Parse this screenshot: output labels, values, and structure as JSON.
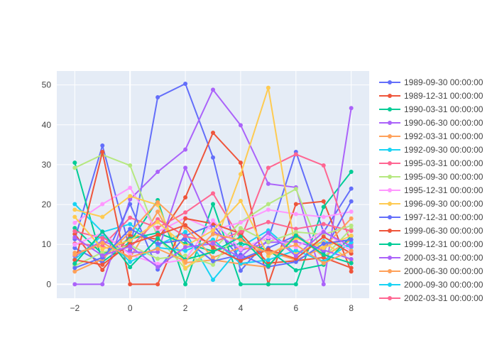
{
  "chart_data": {
    "type": "line",
    "title": "",
    "xlabel": "",
    "ylabel": "",
    "xlim": [
      -2.65,
      8.65
    ],
    "ylim": [
      -3.5,
      53.5
    ],
    "x_ticks": [
      -2,
      0,
      2,
      4,
      6,
      8
    ],
    "y_ticks": [
      0,
      10,
      20,
      30,
      40,
      50
    ],
    "grid": true,
    "legend_position": "right",
    "x": [
      -2,
      -1,
      0,
      1,
      2,
      3,
      4,
      5,
      6,
      7,
      8
    ],
    "series": [
      {
        "name": "1989-09-30 00:00:00",
        "color": "#636efa",
        "values": [
          11.3,
          34.8,
          8.6,
          46.9,
          50.3,
          31.8,
          3.4,
          11.3,
          33.2,
          13.1,
          24.0
        ]
      },
      {
        "name": "1989-12-31 00:00:00",
        "color": "#EF553B",
        "values": [
          12.6,
          3.6,
          12.2,
          11.3,
          21.8,
          38.0,
          30.5,
          0.0,
          20.1,
          20.8,
          3.2
        ]
      },
      {
        "name": "1990-03-31 00:00:00",
        "color": "#00cc96",
        "values": [
          30.5,
          5.6,
          10.6,
          21.1,
          0.0,
          20.1,
          0.0,
          0.0,
          0.0,
          19.4,
          28.2
        ]
      },
      {
        "name": "1990-06-30 00:00:00",
        "color": "#ab63fa",
        "values": [
          0.0,
          0.0,
          21.3,
          28.2,
          33.8,
          48.8,
          39.9,
          25.2,
          24.3,
          0.0,
          44.2
        ]
      },
      {
        "name": "1992-03-31 00:00:00",
        "color": "#FFA15A",
        "values": [
          7.9,
          9.6,
          6.6,
          18.2,
          5.4,
          6.1,
          5.1,
          4.3,
          12.7,
          6.9,
          11.2
        ]
      },
      {
        "name": "1992-09-30 00:00:00",
        "color": "#19d3f3",
        "values": [
          20.1,
          13.1,
          15.1,
          9.8,
          13.1,
          1.1,
          9.4,
          13.5,
          7.6,
          10.8,
          9.3
        ]
      },
      {
        "name": "1995-03-31 00:00:00",
        "color": "#FF6692",
        "values": [
          10.2,
          9.6,
          16.7,
          14.2,
          18.0,
          22.8,
          11.3,
          29.2,
          32.6,
          29.8,
          10.1
        ]
      },
      {
        "name": "1995-09-30 00:00:00",
        "color": "#B6E880",
        "values": [
          29.2,
          32.5,
          29.8,
          11.8,
          3.9,
          8.7,
          15.6,
          20.1,
          23.9,
          6.7,
          13.9
        ]
      },
      {
        "name": "1995-12-31 00:00:00",
        "color": "#FF97FF",
        "values": [
          15.4,
          20.1,
          24.2,
          13.1,
          16.7,
          13.6,
          15.5,
          18.7,
          17.6,
          16.9,
          18.2
        ]
      },
      {
        "name": "1996-09-30 00:00:00",
        "color": "#FECB52",
        "values": [
          18.7,
          16.9,
          22.1,
          19.9,
          4.1,
          8.8,
          27.6,
          49.3,
          7.9,
          10.6,
          5.9
        ]
      },
      {
        "name": "1997-12-31 00:00:00",
        "color": "#636efa",
        "values": [
          9.1,
          5.4,
          20.1,
          3.7,
          12.2,
          14.9,
          6.3,
          9.1,
          12.2,
          8.2,
          20.8
        ]
      },
      {
        "name": "1999-06-30 00:00:00",
        "color": "#EF553B",
        "values": [
          5.1,
          33.2,
          0.0,
          0.0,
          16.5,
          15.2,
          12.7,
          5.3,
          5.9,
          6.7,
          4.1
        ]
      },
      {
        "name": "1999-12-31 00:00:00",
        "color": "#00cc96",
        "values": [
          14.1,
          7.6,
          11.4,
          12.9,
          10.2,
          8.3,
          10.3,
          8.6,
          3.5,
          4.9,
          12.1
        ]
      },
      {
        "name": "2000-03-31 00:00:00",
        "color": "#ab63fa",
        "values": [
          7.1,
          10.9,
          8.0,
          8.1,
          29.2,
          13.4,
          8.5,
          10.5,
          10.7,
          8.6,
          6.3
        ]
      },
      {
        "name": "2000-06-30 00:00:00",
        "color": "#FFA15A",
        "values": [
          3.2,
          6.3,
          13.1,
          20.6,
          14.3,
          6.7,
          9.2,
          8.2,
          6.1,
          9.2,
          16.5
        ]
      },
      {
        "name": "2000-09-30 00:00:00",
        "color": "#19d3f3",
        "values": [
          6.2,
          12.3,
          5.6,
          9.2,
          8.4,
          11.2,
          5.2,
          6.1,
          8.5,
          5.7,
          10.5
        ]
      },
      {
        "name": "2002-03-31 00:00:00",
        "color": "#FF6692",
        "values": [
          13.3,
          11.6,
          9.2,
          16.3,
          12.0,
          10.5,
          13.2,
          15.6,
          13.9,
          15.1,
          13.4
        ]
      },
      {
        "name": "",
        "color": "#B6E880",
        "values": [
          4.6,
          8.0,
          9.8,
          6.4,
          7.2,
          4.9,
          14.1,
          10.6,
          13.1,
          12.5,
          14.7
        ]
      },
      {
        "name": "",
        "color": "#FF97FF",
        "values": [
          9.9,
          12.9,
          7.4,
          5.1,
          6.2,
          16.0,
          8.8,
          11.8,
          9.3,
          13.4,
          8.3
        ]
      },
      {
        "name": "",
        "color": "#FECB52",
        "values": [
          16.9,
          8.8,
          11.0,
          15.6,
          9.6,
          13.5,
          20.9,
          7.1,
          11.6,
          9.1,
          12.2
        ]
      },
      {
        "name": "",
        "color": "#636efa",
        "values": [
          4.1,
          6.7,
          13.9,
          10.2,
          11.2,
          5.8,
          7.4,
          4.4,
          5.6,
          10.2,
          11.2
        ]
      },
      {
        "name": "",
        "color": "#EF553B",
        "values": [
          6.1,
          4.9,
          10.1,
          12.4,
          14.8,
          9.2,
          5.9,
          8.7,
          6.4,
          11.9,
          7.7
        ]
      },
      {
        "name": "",
        "color": "#00cc96",
        "values": [
          5.2,
          13.2,
          4.3,
          11.5,
          6.2,
          8.1,
          11.9,
          4.6,
          12.2,
          7.4,
          5.3
        ]
      },
      {
        "name": "",
        "color": "#ab63fa",
        "values": [
          11.8,
          7.2,
          9.5,
          4.3,
          9.3,
          10.2,
          6.8,
          12.9,
          7.1,
          13.1,
          9.5
        ]
      },
      {
        "name": "",
        "color": "#FFA15A",
        "values": [
          7.4,
          10.4,
          6.8,
          8.9,
          5.8,
          12.6,
          11.1,
          7.8,
          9.9,
          5.3,
          8.4
        ]
      }
    ]
  }
}
